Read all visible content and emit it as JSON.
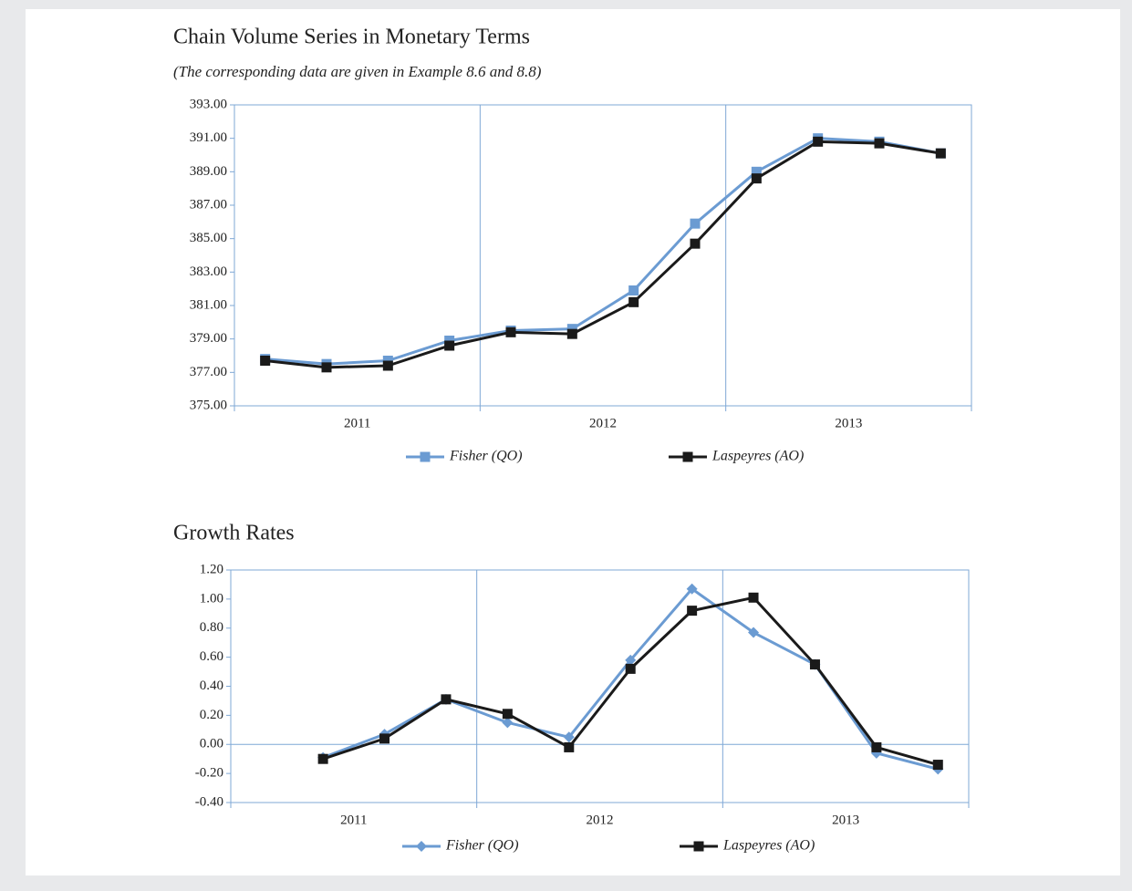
{
  "chart_data": [
    {
      "type": "line",
      "title": "Chain Volume Series in Monetary Terms",
      "subtitle": "(The corresponding data are given in Example 8.6 and 8.8)",
      "groups": [
        "2011",
        "2012",
        "2013"
      ],
      "ylim": [
        375,
        393
      ],
      "yticks": [
        {
          "value": 375,
          "label": "375.00"
        },
        {
          "value": 377,
          "label": "377.00"
        },
        {
          "value": 379,
          "label": "379.00"
        },
        {
          "value": 381,
          "label": "381.00"
        },
        {
          "value": 383,
          "label": "383.00"
        },
        {
          "value": 385,
          "label": "385.00"
        },
        {
          "value": 387,
          "label": "387.00"
        },
        {
          "value": 389,
          "label": "389.00"
        },
        {
          "value": 391,
          "label": "391.00"
        },
        {
          "value": 393,
          "label": "393.00"
        }
      ],
      "series": [
        {
          "name": "Fisher (QO)",
          "color": "#6b9bd2",
          "marker": "square",
          "values": [
            377.8,
            377.5,
            377.7,
            378.9,
            379.5,
            379.6,
            381.9,
            385.9,
            389.0,
            391.0,
            390.8,
            390.1
          ]
        },
        {
          "name": "Laspeyres (AO)",
          "color": "#1a1a1a",
          "marker": "square",
          "values": [
            377.7,
            377.3,
            377.4,
            378.6,
            379.4,
            379.3,
            381.2,
            384.7,
            388.6,
            390.8,
            390.7,
            390.1
          ]
        }
      ]
    },
    {
      "type": "line",
      "title": "Growth Rates",
      "groups": [
        "2011",
        "2012",
        "2013"
      ],
      "ylim": [
        -0.4,
        1.2
      ],
      "yticks": [
        {
          "value": -0.4,
          "label": "-0.40"
        },
        {
          "value": -0.2,
          "label": "-0.20"
        },
        {
          "value": 0,
          "label": "0.00"
        },
        {
          "value": 0.2,
          "label": "0.20"
        },
        {
          "value": 0.4,
          "label": "0.40"
        },
        {
          "value": 0.6,
          "label": "0.60"
        },
        {
          "value": 0.8,
          "label": "0.80"
        },
        {
          "value": 1.0,
          "label": "1.00"
        },
        {
          "value": 1.2,
          "label": "1.20"
        }
      ],
      "series": [
        {
          "name": "Fisher (QO)",
          "color": "#6b9bd2",
          "marker": "diamond",
          "values": [
            null,
            -0.09,
            0.07,
            0.31,
            0.15,
            0.05,
            0.58,
            1.07,
            0.77,
            0.55,
            -0.06,
            -0.17
          ]
        },
        {
          "name": "Laspeyres (AO)",
          "color": "#1a1a1a",
          "marker": "square",
          "values": [
            null,
            -0.1,
            0.04,
            0.31,
            0.21,
            -0.02,
            0.52,
            0.92,
            1.01,
            0.55,
            -0.02,
            -0.14
          ]
        }
      ]
    }
  ]
}
